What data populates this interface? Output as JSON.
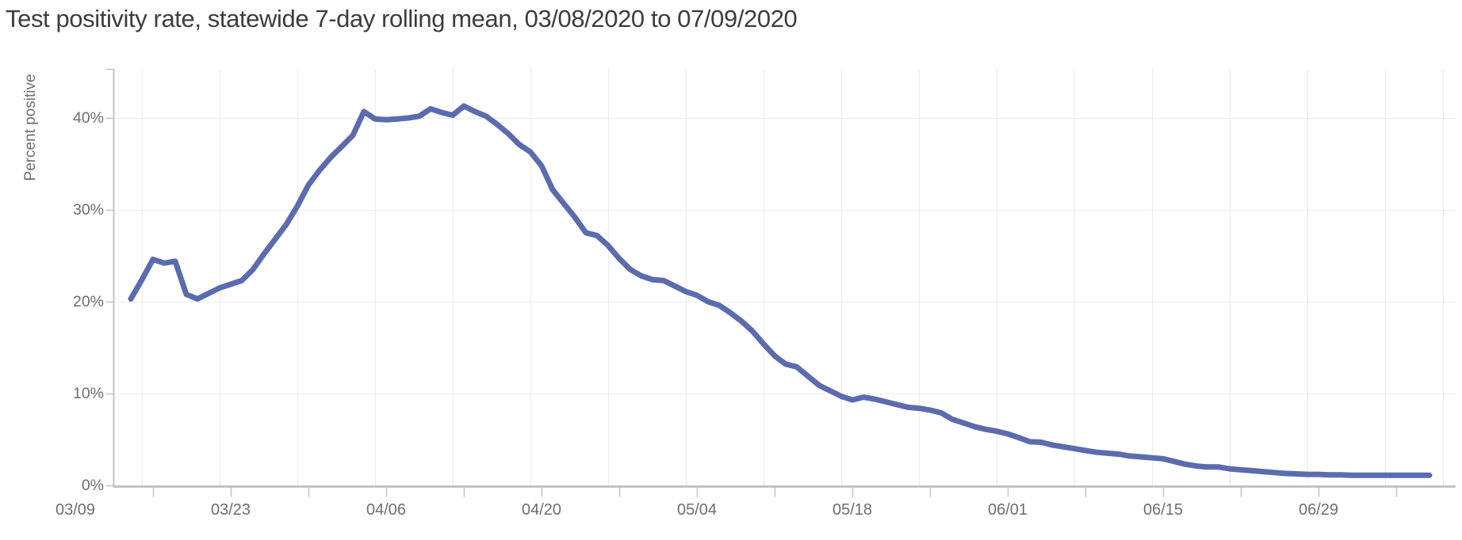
{
  "page": {
    "title": "Test positivity rate, statewide 7-day rolling mean, 03/08/2020 to 07/09/2020"
  },
  "chart_data": {
    "type": "line",
    "title": "Test positivity rate, statewide 7-day rolling mean, 03/08/2020 to 07/09/2020",
    "xlabel": "",
    "ylabel": "Percent positive",
    "legend": "none",
    "grid": "weekly vertical gridlines; horizontal gridlines at each y tick",
    "ylim": [
      0,
      45.3
    ],
    "y_ticks": [
      {
        "value": 0,
        "label": "0%"
      },
      {
        "value": 10,
        "label": "10%"
      },
      {
        "value": 20,
        "label": "20%"
      },
      {
        "value": 30,
        "label": "30%"
      },
      {
        "value": 40,
        "label": "40%"
      }
    ],
    "x_tick_labels": [
      "03/09",
      "03/23",
      "04/06",
      "04/20",
      "05/04",
      "05/18",
      "06/01",
      "06/15",
      "06/29"
    ],
    "x_minor_ticks": "weekly (every Monday, unlabeled between bi-weekly labels)",
    "series": [
      {
        "name": "7-day rolling mean test positivity",
        "x": [
          "03/14",
          "03/15",
          "03/16",
          "03/17",
          "03/18",
          "03/19",
          "03/20",
          "03/21",
          "03/22",
          "03/23",
          "03/24",
          "03/25",
          "03/26",
          "03/27",
          "03/28",
          "03/29",
          "03/30",
          "03/31",
          "04/01",
          "04/02",
          "04/03",
          "04/04",
          "04/05",
          "04/06",
          "04/07",
          "04/08",
          "04/09",
          "04/10",
          "04/11",
          "04/12",
          "04/13",
          "04/14",
          "04/15",
          "04/16",
          "04/17",
          "04/18",
          "04/19",
          "04/20",
          "04/21",
          "04/22",
          "04/23",
          "04/24",
          "04/25",
          "04/26",
          "04/27",
          "04/28",
          "04/29",
          "04/30",
          "05/01",
          "05/02",
          "05/03",
          "05/04",
          "05/05",
          "05/06",
          "05/07",
          "05/08",
          "05/09",
          "05/10",
          "05/11",
          "05/12",
          "05/13",
          "05/14",
          "05/15",
          "05/16",
          "05/17",
          "05/18",
          "05/19",
          "05/20",
          "05/21",
          "05/22",
          "05/23",
          "05/24",
          "05/25",
          "05/26",
          "05/27",
          "05/28",
          "05/29",
          "05/30",
          "05/31",
          "06/01",
          "06/02",
          "06/03",
          "06/04",
          "06/05",
          "06/06",
          "06/07",
          "06/08",
          "06/09",
          "06/10",
          "06/11",
          "06/12",
          "06/13",
          "06/14",
          "06/15",
          "06/16",
          "06/17",
          "06/18",
          "06/19",
          "06/20",
          "06/21",
          "06/22",
          "06/23",
          "06/24",
          "06/25",
          "06/26",
          "06/27",
          "06/28",
          "06/29",
          "06/30",
          "07/01",
          "07/02",
          "07/03",
          "07/04",
          "07/05",
          "07/06",
          "07/07",
          "07/08",
          "07/09"
        ],
        "values": [
          20.3,
          22.4,
          24.6,
          24.2,
          24.4,
          20.8,
          20.3,
          20.9,
          21.5,
          21.9,
          22.3,
          23.5,
          25.2,
          26.8,
          28.4,
          30.4,
          32.7,
          34.3,
          35.7,
          36.9,
          38.1,
          40.7,
          39.9,
          39.8,
          39.9,
          40.0,
          40.2,
          41.0,
          40.6,
          40.3,
          41.3,
          40.7,
          40.2,
          39.3,
          38.3,
          37.1,
          36.3,
          34.8,
          32.2,
          30.7,
          29.2,
          27.5,
          27.2,
          26.1,
          24.7,
          23.5,
          22.8,
          22.4,
          22.3,
          21.7,
          21.1,
          20.7,
          20.0,
          19.6,
          18.8,
          17.9,
          16.8,
          15.4,
          14.1,
          13.2,
          12.9,
          11.9,
          10.9,
          10.3,
          9.7,
          9.3,
          9.6,
          9.4,
          9.1,
          8.8,
          8.5,
          8.4,
          8.2,
          7.9,
          7.2,
          6.8,
          6.4,
          6.1,
          5.9,
          5.6,
          5.2,
          4.75,
          4.7,
          4.4,
          4.2,
          4.0,
          3.8,
          3.6,
          3.5,
          3.4,
          3.2,
          3.1,
          3.0,
          2.9,
          2.6,
          2.3,
          2.1,
          2.0,
          2.0,
          1.8,
          1.7,
          1.6,
          1.5,
          1.4,
          1.3,
          1.25,
          1.2,
          1.2,
          1.15,
          1.15,
          1.1,
          1.1,
          1.1,
          1.1,
          1.1,
          1.1,
          1.1,
          1.1
        ]
      }
    ],
    "colors": {
      "line": "#5b6bae",
      "gridline": "#ebebeb",
      "axis": "#c3c3c3",
      "title_text": "#3d3d3d",
      "tick_text": "#6e6e6e",
      "background": "#ffffff"
    }
  }
}
